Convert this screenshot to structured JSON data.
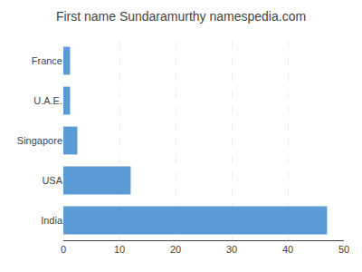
{
  "chart_data": {
    "type": "bar",
    "orientation": "horizontal",
    "title": "First name Sundaramurthy namespedia.com",
    "categories": [
      "India",
      "USA",
      "Singapore",
      "U.A.E.",
      "France"
    ],
    "values": [
      47,
      12,
      2.5,
      1.2,
      1.2
    ],
    "color": "#5b9bd5",
    "xlim": [
      0,
      50
    ],
    "xticks": [
      0,
      10,
      20,
      30,
      40,
      50
    ],
    "grid": true
  }
}
